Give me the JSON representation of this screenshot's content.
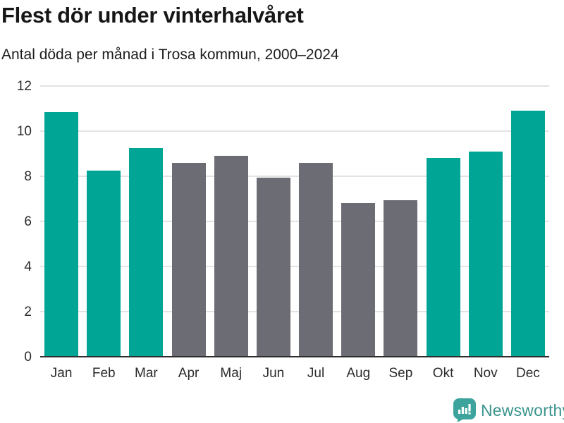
{
  "header": {
    "title": "Flest dör under vinterhalvåret",
    "subtitle": "Antal döda per månad i Trosa kommun, 2000–2024"
  },
  "chart_data": {
    "type": "bar",
    "title": "Flest dör under vinterhalvåret",
    "subtitle": "Antal döda per månad i Trosa kommun, 2000–2024",
    "categories": [
      "Jan",
      "Feb",
      "Mar",
      "Apr",
      "Maj",
      "Jun",
      "Jul",
      "Aug",
      "Sep",
      "Okt",
      "Nov",
      "Dec"
    ],
    "values": [
      10.85,
      8.25,
      9.25,
      8.6,
      8.9,
      7.95,
      8.6,
      6.8,
      6.95,
      8.8,
      9.1,
      10.9
    ],
    "bar_color_keys": [
      "teal",
      "teal",
      "teal",
      "gray",
      "gray",
      "gray",
      "gray",
      "gray",
      "gray",
      "teal",
      "teal",
      "teal"
    ],
    "colors": {
      "teal": "#00a596",
      "gray": "#6c6c74"
    },
    "xlabel": "",
    "ylabel": "",
    "ylim": [
      0,
      12
    ],
    "yticks": [
      0,
      2,
      4,
      6,
      8,
      10,
      12
    ],
    "grid": true,
    "legend": false,
    "highlight_meaning": "winter-half months (Okt–Mar) in teal, summer-half (Apr–Sep) in gray"
  },
  "footer": {
    "brand": "Newsworthy",
    "brand_color": "#3a948d",
    "logo_icon": "newsworthy-speech-bubble-chart-icon",
    "logo_color": "#3ca49c"
  }
}
